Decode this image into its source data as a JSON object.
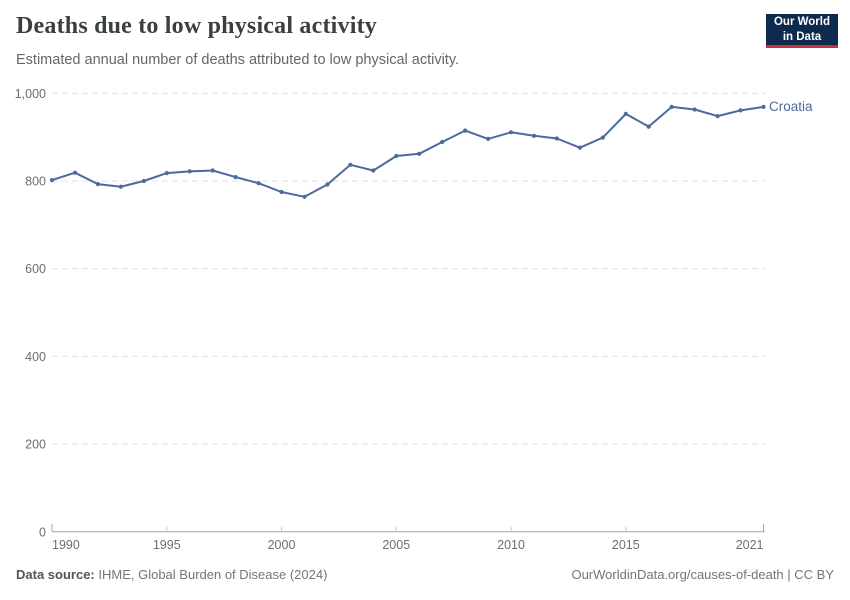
{
  "header": {
    "title": "Deaths due to low physical activity",
    "subtitle": "Estimated annual number of deaths attributed to low physical activity.",
    "logo": {
      "line1": "Our World",
      "line2": "in Data"
    }
  },
  "chart_data": {
    "type": "line",
    "title": "Deaths due to low physical activity",
    "x": [
      1990,
      1991,
      1992,
      1993,
      1994,
      1995,
      1996,
      1997,
      1998,
      1999,
      2000,
      2001,
      2002,
      2003,
      2004,
      2005,
      2006,
      2007,
      2008,
      2009,
      2010,
      2011,
      2012,
      2013,
      2014,
      2015,
      2016,
      2017,
      2018,
      2019,
      2020,
      2021
    ],
    "series": [
      {
        "name": "Croatia",
        "color": "#4C6A9C",
        "values": [
          802,
          819,
          793,
          787,
          800,
          818,
          822,
          824,
          809,
          795,
          775,
          764,
          792,
          837,
          824,
          857,
          862,
          889,
          915,
          896,
          911,
          903,
          897,
          876,
          899,
          953,
          924,
          969,
          963,
          948,
          961,
          969
        ]
      }
    ],
    "xlim": [
      1990,
      2021
    ],
    "ylim": [
      0,
      1000
    ],
    "x_ticks": [
      1990,
      1995,
      2000,
      2005,
      2010,
      2015,
      2021
    ],
    "y_ticks": [
      0,
      200,
      400,
      600,
      800,
      1000
    ],
    "y_tick_labels": [
      "0",
      "200",
      "400",
      "600",
      "800",
      "1,000"
    ],
    "grid": "horizontal-dashed",
    "legend_position": "end-of-line-label"
  },
  "footer": {
    "source_label": "Data source:",
    "source_value": "IHME, Global Burden of Disease (2024)",
    "link": "OurWorldinData.org/causes-of-death | CC BY"
  },
  "colors": {
    "line": "#4C6A9C",
    "logo_bg": "#0d2a4e",
    "logo_red": "#c53434",
    "gridline": "#e0e0e0",
    "axis": "#a3a3a3",
    "tick_text": "#6e6e6e"
  }
}
